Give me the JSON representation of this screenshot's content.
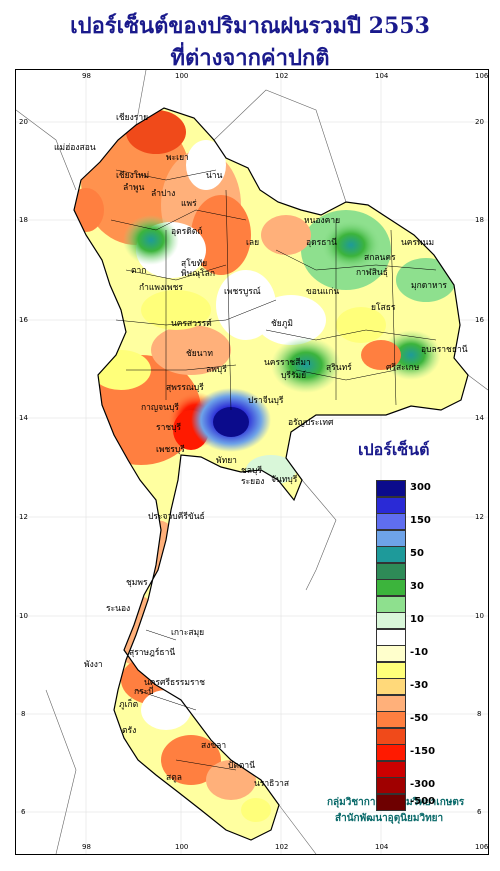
{
  "header": {
    "title_line1": "เปอร์เซ็นต์ของปริมาณฝนรวมปี  2553",
    "title_line2": "ที่ต่างจากค่าปกติ"
  },
  "axes": {
    "x_ticks": [
      "98",
      "100",
      "102",
      "104",
      "106"
    ],
    "y_ticks": [
      "20",
      "18",
      "16",
      "14",
      "12",
      "10",
      "8",
      "6"
    ]
  },
  "provinces": [
    "เชียงราย",
    "แม่ฮ่องสอน",
    "พะเยา",
    "เชียงใหม่",
    "ลำพูน",
    "น่าน",
    "ลำปาง",
    "แพร่",
    "อุตรดิตถ์",
    "หนองคาย",
    "อุดรธานี",
    "นครพนม",
    "สกลนคร",
    "เลย",
    "ตาก",
    "สุโขทัย",
    "พิษณุโลก",
    "กาฬสินธุ์",
    "มุกดาหาร",
    "กำแพงเพชร",
    "เพชรบูรณ์",
    "ขอนแก่น",
    "ยโสธร",
    "นครสวรรค์",
    "ชัยภูมิ",
    "ชัยนาท",
    "ลพบุรี",
    "ชลบุรี",
    "อุบลราชธานี",
    "นครราชสีมา",
    "สุรินทร์",
    "ศรีสะเกษ",
    "บุรีรัมย์",
    "สุพรรณบุรี",
    "กาญจนบุรี",
    "ราชบุรี",
    "ปราจีนบุรี",
    "อรัญประเทศ",
    "เพชรบุรี",
    "พัทยา",
    "ระยอง",
    "จันทบุรี",
    "ประจวบคีรีขันธ์",
    "ชุมพร",
    "ระนอง",
    "เกาะสมุย",
    "สุราษฎร์ธานี",
    "นครศรีธรรมราช",
    "พังงา",
    "ภูเก็ต",
    "กระบี่",
    "ตรัง",
    "สงขลา",
    "สตูล",
    "ปัตตานี",
    "นราธิวาส"
  ],
  "legend": {
    "title": "เปอร์เซ็นต์",
    "classes": [
      {
        "label": "300",
        "color": "#0b0b8c"
      },
      {
        "label": "",
        "color": "#2a2ad6"
      },
      {
        "label": "150",
        "color": "#5f6ef0"
      },
      {
        "label": "",
        "color": "#6ea3e8"
      },
      {
        "label": "50",
        "color": "#1e9a9a"
      },
      {
        "label": "",
        "color": "#2e8b57"
      },
      {
        "label": "30",
        "color": "#3cb43c"
      },
      {
        "label": "",
        "color": "#8ee08e"
      },
      {
        "label": "10",
        "color": "#d9f7d9"
      },
      {
        "label": "",
        "color": "#ffffff"
      },
      {
        "label": "-10",
        "color": "#ffffcc"
      },
      {
        "label": "",
        "color": "#ffff7a"
      },
      {
        "label": "-30",
        "color": "#ffd97a"
      },
      {
        "label": "",
        "color": "#ffb07a"
      },
      {
        "label": "-50",
        "color": "#ff7f40"
      },
      {
        "label": "",
        "color": "#f04a1a"
      },
      {
        "label": "-150",
        "color": "#ff1a00"
      },
      {
        "label": "",
        "color": "#cc0000"
      },
      {
        "label": "-300",
        "color": "#a00000"
      },
      {
        "label": "-500",
        "color": "#6e0000"
      }
    ]
  },
  "credits": {
    "line1": "กลุ่มวิชาการอุตุนิยมวิทยาเกษตร",
    "line2": "สำนักพัฒนาอุตุนิยมวิทยา"
  }
}
